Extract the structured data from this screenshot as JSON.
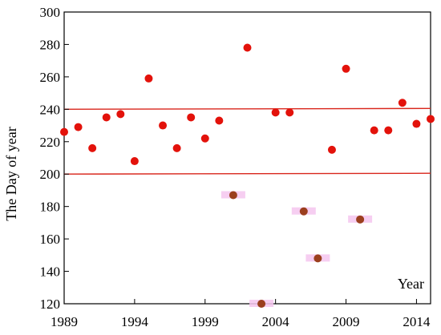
{
  "chart_data": {
    "type": "scatter",
    "title": "",
    "xlabel": "Year",
    "ylabel": "The Day of year",
    "xlim": [
      1989,
      2015
    ],
    "ylim": [
      120,
      300
    ],
    "x_ticks": [
      1989,
      1994,
      1999,
      2004,
      2009,
      2014
    ],
    "y_ticks": [
      120,
      140,
      160,
      180,
      200,
      220,
      240,
      260,
      280,
      300
    ],
    "grid": false,
    "reference_lines": [
      {
        "y_start": 240,
        "y_end": 240.5,
        "color": "#d9261c"
      },
      {
        "y_start": 200,
        "y_end": 200.5,
        "color": "#d9261c"
      }
    ],
    "series": [
      {
        "color": "#e3120b",
        "points": [
          {
            "x": 1989,
            "y": 226
          },
          {
            "x": 1990,
            "y": 229
          },
          {
            "x": 1991,
            "y": 216
          },
          {
            "x": 1992,
            "y": 235
          },
          {
            "x": 1993,
            "y": 237
          },
          {
            "x": 1994,
            "y": 208
          },
          {
            "x": 1995,
            "y": 259
          },
          {
            "x": 1996,
            "y": 230
          },
          {
            "x": 1997,
            "y": 216
          },
          {
            "x": 1998,
            "y": 235
          },
          {
            "x": 1999,
            "y": 222
          },
          {
            "x": 2000,
            "y": 233
          },
          {
            "x": 2002,
            "y": 278
          },
          {
            "x": 2004,
            "y": 238
          },
          {
            "x": 2005,
            "y": 238
          },
          {
            "x": 2008,
            "y": 215
          },
          {
            "x": 2009,
            "y": 265
          },
          {
            "x": 2011,
            "y": 227
          },
          {
            "x": 2012,
            "y": 227
          },
          {
            "x": 2013,
            "y": 244
          },
          {
            "x": 2014,
            "y": 231
          },
          {
            "x": 2015,
            "y": 234
          }
        ]
      },
      {
        "color": "#9b3f1e",
        "highlight_color": "#f4c6ee",
        "points": [
          {
            "x": 2001,
            "y": 187
          },
          {
            "x": 2003,
            "y": 120
          },
          {
            "x": 2006,
            "y": 177
          },
          {
            "x": 2007,
            "y": 148
          },
          {
            "x": 2010,
            "y": 172
          }
        ]
      }
    ]
  }
}
